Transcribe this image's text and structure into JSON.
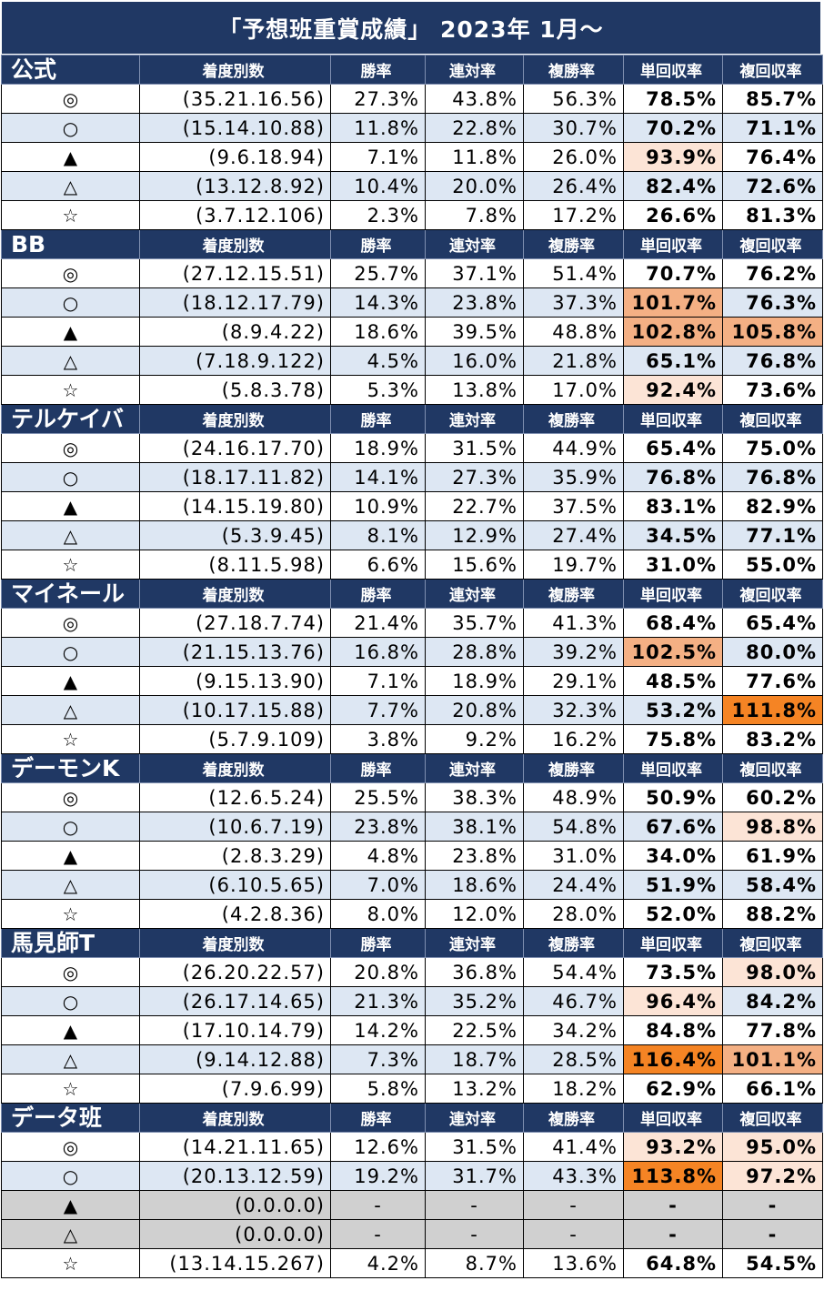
{
  "title": "「予想班重賞成績」 2023年 1月～",
  "headers": [
    "着度別数",
    "勝率",
    "連対率",
    "複勝率",
    "単回収率",
    "複回収率"
  ],
  "colors": {
    "header_bg": "#203864",
    "row_alt": "#dde7f3",
    "blank_row": "#d0d0d0",
    "highlight_light": "#fce4d6",
    "highlight_mid": "#f4b084",
    "highlight_strong": "#f58424"
  },
  "groups": [
    {
      "name": "公式",
      "rows": [
        {
          "mark": "◎",
          "counts": "(35.21.16.56)",
          "win": "27.3%",
          "quinella": "43.8%",
          "place": "56.3%",
          "win_return": "78.5%",
          "place_return": "85.7%",
          "hl": [
            null,
            null
          ]
        },
        {
          "mark": "○",
          "counts": "(15.14.10.88)",
          "win": "11.8%",
          "quinella": "22.8%",
          "place": "30.7%",
          "win_return": "70.2%",
          "place_return": "71.1%",
          "hl": [
            null,
            null
          ]
        },
        {
          "mark": "▲",
          "counts": "(9.6.18.94)",
          "win": "7.1%",
          "quinella": "11.8%",
          "place": "26.0%",
          "win_return": "93.9%",
          "place_return": "76.4%",
          "hl": [
            "light",
            null
          ]
        },
        {
          "mark": "△",
          "counts": "(13.12.8.92)",
          "win": "10.4%",
          "quinella": "20.0%",
          "place": "26.4%",
          "win_return": "82.4%",
          "place_return": "72.6%",
          "hl": [
            null,
            null
          ]
        },
        {
          "mark": "☆",
          "counts": "(3.7.12.106)",
          "win": "2.3%",
          "quinella": "7.8%",
          "place": "17.2%",
          "win_return": "26.6%",
          "place_return": "81.3%",
          "hl": [
            null,
            null
          ]
        }
      ]
    },
    {
      "name": "BB",
      "rows": [
        {
          "mark": "◎",
          "counts": "(27.12.15.51)",
          "win": "25.7%",
          "quinella": "37.1%",
          "place": "51.4%",
          "win_return": "70.7%",
          "place_return": "76.2%",
          "hl": [
            null,
            null
          ]
        },
        {
          "mark": "○",
          "counts": "(18.12.17.79)",
          "win": "14.3%",
          "quinella": "23.8%",
          "place": "37.3%",
          "win_return": "101.7%",
          "place_return": "76.3%",
          "hl": [
            "mid",
            null
          ]
        },
        {
          "mark": "▲",
          "counts": "(8.9.4.22)",
          "win": "18.6%",
          "quinella": "39.5%",
          "place": "48.8%",
          "win_return": "102.8%",
          "place_return": "105.8%",
          "hl": [
            "mid",
            "mid"
          ]
        },
        {
          "mark": "△",
          "counts": "(7.18.9.122)",
          "win": "4.5%",
          "quinella": "16.0%",
          "place": "21.8%",
          "win_return": "65.1%",
          "place_return": "76.8%",
          "hl": [
            null,
            null
          ]
        },
        {
          "mark": "☆",
          "counts": "(5.8.3.78)",
          "win": "5.3%",
          "quinella": "13.8%",
          "place": "17.0%",
          "win_return": "92.4%",
          "place_return": "73.6%",
          "hl": [
            "light",
            null
          ]
        }
      ]
    },
    {
      "name": "テルケイバ",
      "rows": [
        {
          "mark": "◎",
          "counts": "(24.16.17.70)",
          "win": "18.9%",
          "quinella": "31.5%",
          "place": "44.9%",
          "win_return": "65.4%",
          "place_return": "75.0%",
          "hl": [
            null,
            null
          ]
        },
        {
          "mark": "○",
          "counts": "(18.17.11.82)",
          "win": "14.1%",
          "quinella": "27.3%",
          "place": "35.9%",
          "win_return": "76.8%",
          "place_return": "76.8%",
          "hl": [
            null,
            null
          ]
        },
        {
          "mark": "▲",
          "counts": "(14.15.19.80)",
          "win": "10.9%",
          "quinella": "22.7%",
          "place": "37.5%",
          "win_return": "83.1%",
          "place_return": "82.9%",
          "hl": [
            null,
            null
          ]
        },
        {
          "mark": "△",
          "counts": "(5.3.9.45)",
          "win": "8.1%",
          "quinella": "12.9%",
          "place": "27.4%",
          "win_return": "34.5%",
          "place_return": "77.1%",
          "hl": [
            null,
            null
          ]
        },
        {
          "mark": "☆",
          "counts": "(8.11.5.98)",
          "win": "6.6%",
          "quinella": "15.6%",
          "place": "19.7%",
          "win_return": "31.0%",
          "place_return": "55.0%",
          "hl": [
            null,
            null
          ]
        }
      ]
    },
    {
      "name": "マイネール",
      "rows": [
        {
          "mark": "◎",
          "counts": "(27.18.7.74)",
          "win": "21.4%",
          "quinella": "35.7%",
          "place": "41.3%",
          "win_return": "68.4%",
          "place_return": "65.4%",
          "hl": [
            null,
            null
          ]
        },
        {
          "mark": "○",
          "counts": "(21.15.13.76)",
          "win": "16.8%",
          "quinella": "28.8%",
          "place": "39.2%",
          "win_return": "102.5%",
          "place_return": "80.0%",
          "hl": [
            "mid",
            null
          ]
        },
        {
          "mark": "▲",
          "counts": "(9.15.13.90)",
          "win": "7.1%",
          "quinella": "18.9%",
          "place": "29.1%",
          "win_return": "48.5%",
          "place_return": "77.6%",
          "hl": [
            null,
            null
          ]
        },
        {
          "mark": "△",
          "counts": "(10.17.15.88)",
          "win": "7.7%",
          "quinella": "20.8%",
          "place": "32.3%",
          "win_return": "53.2%",
          "place_return": "111.8%",
          "hl": [
            null,
            "strong"
          ]
        },
        {
          "mark": "☆",
          "counts": "(5.7.9.109)",
          "win": "3.8%",
          "quinella": "9.2%",
          "place": "16.2%",
          "win_return": "75.8%",
          "place_return": "83.2%",
          "hl": [
            null,
            null
          ]
        }
      ]
    },
    {
      "name": "デーモンK",
      "rows": [
        {
          "mark": "◎",
          "counts": "(12.6.5.24)",
          "win": "25.5%",
          "quinella": "38.3%",
          "place": "48.9%",
          "win_return": "50.9%",
          "place_return": "60.2%",
          "hl": [
            null,
            null
          ]
        },
        {
          "mark": "○",
          "counts": "(10.6.7.19)",
          "win": "23.8%",
          "quinella": "38.1%",
          "place": "54.8%",
          "win_return": "67.6%",
          "place_return": "98.8%",
          "hl": [
            null,
            "light"
          ]
        },
        {
          "mark": "▲",
          "counts": "(2.8.3.29)",
          "win": "4.8%",
          "quinella": "23.8%",
          "place": "31.0%",
          "win_return": "34.0%",
          "place_return": "61.9%",
          "hl": [
            null,
            null
          ]
        },
        {
          "mark": "△",
          "counts": "(6.10.5.65)",
          "win": "7.0%",
          "quinella": "18.6%",
          "place": "24.4%",
          "win_return": "51.9%",
          "place_return": "58.4%",
          "hl": [
            null,
            null
          ]
        },
        {
          "mark": "☆",
          "counts": "(4.2.8.36)",
          "win": "8.0%",
          "quinella": "12.0%",
          "place": "28.0%",
          "win_return": "52.0%",
          "place_return": "88.2%",
          "hl": [
            null,
            null
          ]
        }
      ]
    },
    {
      "name": "馬見師T",
      "rows": [
        {
          "mark": "◎",
          "counts": "(26.20.22.57)",
          "win": "20.8%",
          "quinella": "36.8%",
          "place": "54.4%",
          "win_return": "73.5%",
          "place_return": "98.0%",
          "hl": [
            null,
            "light"
          ]
        },
        {
          "mark": "○",
          "counts": "(26.17.14.65)",
          "win": "21.3%",
          "quinella": "35.2%",
          "place": "46.7%",
          "win_return": "96.4%",
          "place_return": "84.2%",
          "hl": [
            "light",
            null
          ]
        },
        {
          "mark": "▲",
          "counts": "(17.10.14.79)",
          "win": "14.2%",
          "quinella": "22.5%",
          "place": "34.2%",
          "win_return": "84.8%",
          "place_return": "77.8%",
          "hl": [
            null,
            null
          ]
        },
        {
          "mark": "△",
          "counts": "(9.14.12.88)",
          "win": "7.3%",
          "quinella": "18.7%",
          "place": "28.5%",
          "win_return": "116.4%",
          "place_return": "101.1%",
          "hl": [
            "strong",
            "mid"
          ]
        },
        {
          "mark": "☆",
          "counts": "(7.9.6.99)",
          "win": "5.8%",
          "quinella": "13.2%",
          "place": "18.2%",
          "win_return": "62.9%",
          "place_return": "66.1%",
          "hl": [
            null,
            null
          ]
        }
      ]
    },
    {
      "name": "データ班",
      "rows": [
        {
          "mark": "◎",
          "counts": "(14.21.11.65)",
          "win": "12.6%",
          "quinella": "31.5%",
          "place": "41.4%",
          "win_return": "93.2%",
          "place_return": "95.0%",
          "hl": [
            "light",
            "light"
          ]
        },
        {
          "mark": "○",
          "counts": "(20.13.12.59)",
          "win": "19.2%",
          "quinella": "31.7%",
          "place": "43.3%",
          "win_return": "113.8%",
          "place_return": "97.2%",
          "hl": [
            "strong",
            "light"
          ]
        },
        {
          "mark": "▲",
          "counts": "(0.0.0.0)",
          "win": "-",
          "quinella": "-",
          "place": "-",
          "win_return": "-",
          "place_return": "-",
          "hl": [
            null,
            null
          ],
          "blank": true
        },
        {
          "mark": "△",
          "counts": "(0.0.0.0)",
          "win": "-",
          "quinella": "-",
          "place": "-",
          "win_return": "-",
          "place_return": "-",
          "hl": [
            null,
            null
          ],
          "blank": true
        },
        {
          "mark": "☆",
          "counts": "(13.14.15.267)",
          "win": "4.2%",
          "quinella": "8.7%",
          "place": "13.6%",
          "win_return": "64.8%",
          "place_return": "54.5%",
          "hl": [
            null,
            null
          ]
        }
      ]
    }
  ]
}
